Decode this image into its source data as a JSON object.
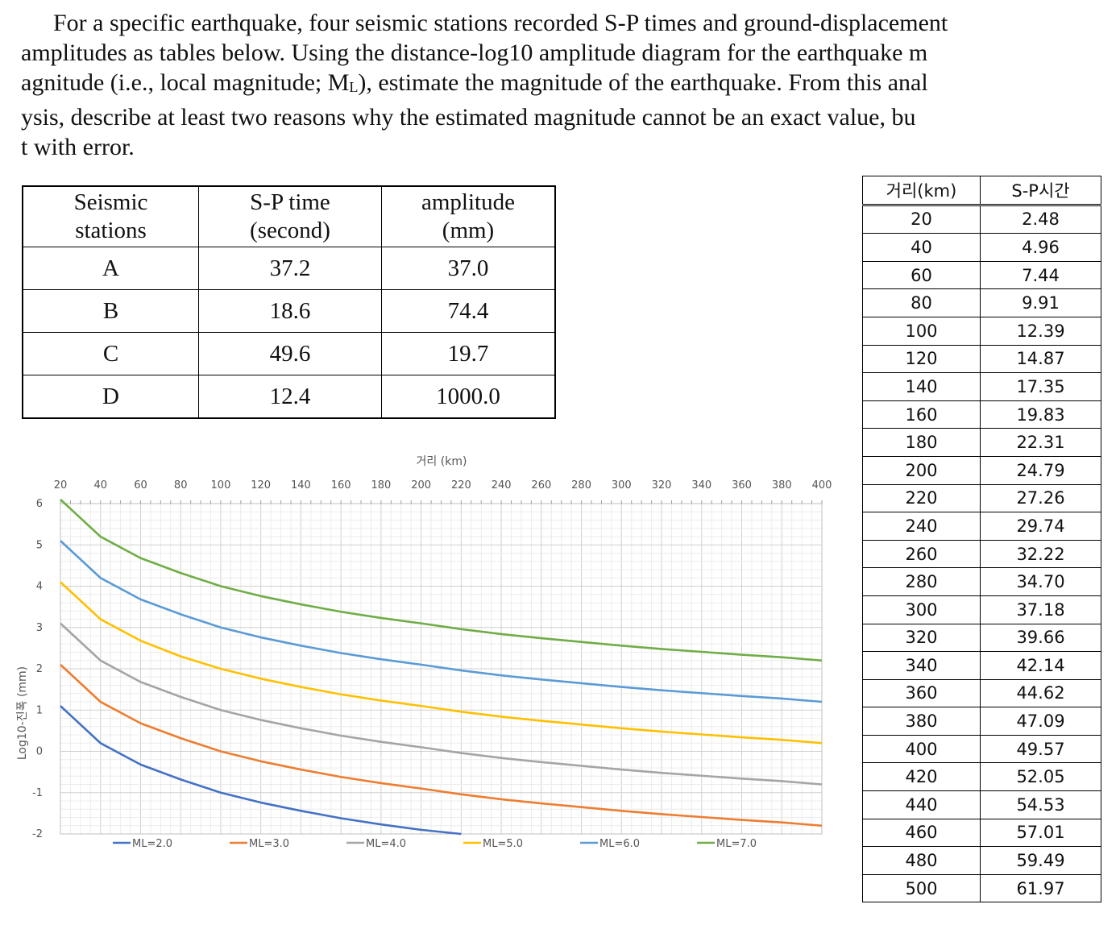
{
  "question": {
    "line1": "For a specific earthquake, four seismic stations recorded S-P times and ground-displacement",
    "line2": "amplitudes as tables below. Using the distance-log10 amplitude diagram for the earthquake m",
    "line3": "agnitude (i.e., local magnitude; M",
    "line3_sub": "L",
    "line3_end": "), estimate the magnitude of the earthquake. From this anal",
    "line4": "ysis, describe at least two reasons why the estimated magnitude cannot be an exact value, bu",
    "line5": "t with error."
  },
  "station_table": {
    "headers": [
      [
        "Seismic",
        "stations"
      ],
      [
        "S-P time",
        "(second)"
      ],
      [
        "amplitude",
        "(mm)"
      ]
    ],
    "rows": [
      [
        "A",
        "37.2",
        "37.0"
      ],
      [
        "B",
        "18.6",
        "74.4"
      ],
      [
        "C",
        "49.6",
        "19.7"
      ],
      [
        "D",
        "12.4",
        "1000.0"
      ]
    ]
  },
  "distance_table": {
    "headers": [
      "거리(km)",
      "S-P시간"
    ],
    "rows": [
      [
        "20",
        "2.48"
      ],
      [
        "40",
        "4.96"
      ],
      [
        "60",
        "7.44"
      ],
      [
        "80",
        "9.91"
      ],
      [
        "100",
        "12.39"
      ],
      [
        "120",
        "14.87"
      ],
      [
        "140",
        "17.35"
      ],
      [
        "160",
        "19.83"
      ],
      [
        "180",
        "22.31"
      ],
      [
        "200",
        "24.79"
      ],
      [
        "220",
        "27.26"
      ],
      [
        "240",
        "29.74"
      ],
      [
        "260",
        "32.22"
      ],
      [
        "280",
        "34.70"
      ],
      [
        "300",
        "37.18"
      ],
      [
        "320",
        "39.66"
      ],
      [
        "340",
        "42.14"
      ],
      [
        "360",
        "44.62"
      ],
      [
        "380",
        "47.09"
      ],
      [
        "400",
        "49.57"
      ],
      [
        "420",
        "52.05"
      ],
      [
        "440",
        "54.53"
      ],
      [
        "460",
        "57.01"
      ],
      [
        "480",
        "59.49"
      ],
      [
        "500",
        "61.97"
      ]
    ]
  },
  "chart_data": {
    "type": "line",
    "xlabel": "거리 (km)",
    "ylabel": "Log10-진폭 (mm)",
    "xlim": [
      20,
      400
    ],
    "ylim": [
      -2,
      6
    ],
    "x_ticks": [
      "20",
      "40",
      "60",
      "80",
      "100",
      "120",
      "140",
      "160",
      "180",
      "200",
      "220",
      "240",
      "260",
      "280",
      "300",
      "320",
      "340",
      "360",
      "380",
      "400"
    ],
    "y_ticks": [
      "6",
      "5",
      "4",
      "3",
      "2",
      "1",
      "0",
      "-1",
      "-2"
    ],
    "x_axis_position": "top",
    "grid": true,
    "legend_position": "bottom",
    "x": [
      20,
      40,
      60,
      80,
      100,
      120,
      140,
      160,
      180,
      200,
      220,
      240,
      260,
      280,
      300,
      320,
      340,
      360,
      380,
      400
    ],
    "series": [
      {
        "name": "ML=2.0",
        "color": "#4472C4",
        "values": [
          1.1,
          0.2,
          -0.32,
          -0.68,
          -1.0,
          -1.24,
          -1.44,
          -1.62,
          -1.77,
          -1.9,
          -2.0,
          null,
          null,
          null,
          null,
          null,
          null,
          null,
          null,
          null
        ]
      },
      {
        "name": "ML=3.0",
        "color": "#ED7D31",
        "values": [
          2.1,
          1.2,
          0.68,
          0.32,
          0.0,
          -0.24,
          -0.44,
          -0.62,
          -0.77,
          -0.9,
          -1.04,
          -1.16,
          -1.26,
          -1.35,
          -1.44,
          -1.52,
          -1.59,
          -1.66,
          -1.72,
          -1.8
        ]
      },
      {
        "name": "ML=4.0",
        "color": "#A5A5A5",
        "values": [
          3.1,
          2.2,
          1.68,
          1.32,
          1.0,
          0.76,
          0.56,
          0.38,
          0.23,
          0.1,
          -0.04,
          -0.16,
          -0.26,
          -0.35,
          -0.44,
          -0.52,
          -0.59,
          -0.66,
          -0.72,
          -0.8
        ]
      },
      {
        "name": "ML=5.0",
        "color": "#FFC000",
        "values": [
          4.1,
          3.2,
          2.68,
          2.3,
          2.0,
          1.76,
          1.56,
          1.38,
          1.23,
          1.1,
          0.96,
          0.84,
          0.74,
          0.65,
          0.56,
          0.48,
          0.41,
          0.34,
          0.28,
          0.2
        ]
      },
      {
        "name": "ML=6.0",
        "color": "#5B9BD5",
        "values": [
          5.1,
          4.2,
          3.68,
          3.32,
          3.0,
          2.76,
          2.56,
          2.38,
          2.23,
          2.1,
          1.96,
          1.84,
          1.74,
          1.65,
          1.56,
          1.48,
          1.41,
          1.34,
          1.28,
          1.2
        ]
      },
      {
        "name": "ML=7.0",
        "color": "#70AD47",
        "values": [
          6.1,
          5.2,
          4.68,
          4.32,
          4.0,
          3.76,
          3.56,
          3.38,
          3.23,
          3.1,
          2.96,
          2.84,
          2.74,
          2.65,
          2.56,
          2.48,
          2.41,
          2.34,
          2.28,
          2.2
        ]
      }
    ]
  }
}
